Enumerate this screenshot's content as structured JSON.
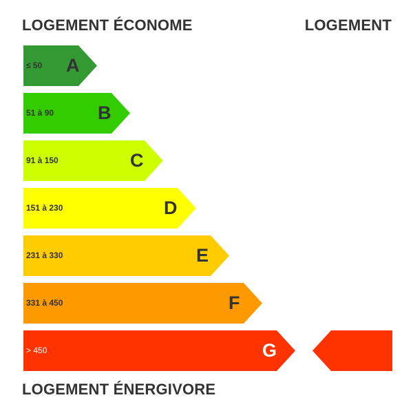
{
  "titles": {
    "top": "LOGEMENT ÉCONOME",
    "right": "LOGEMENT",
    "bottom": "LOGEMENT ÉNERGIVORE"
  },
  "bands": [
    {
      "letter": "A",
      "range": "≤ 50",
      "color": "#339933"
    },
    {
      "letter": "B",
      "range": "51 à 90",
      "color": "#33cc00"
    },
    {
      "letter": "C",
      "range": "91 à 150",
      "color": "#ccff00"
    },
    {
      "letter": "D",
      "range": "151 à 230",
      "color": "#ffff00"
    },
    {
      "letter": "E",
      "range": "231 à 330",
      "color": "#ffcc00"
    },
    {
      "letter": "F",
      "range": "331 à 450",
      "color": "#ff9900"
    },
    {
      "letter": "G",
      "range": "> 450",
      "color": "#ff3300"
    }
  ],
  "indicator": {
    "class": "G",
    "color": "#ff3300"
  }
}
